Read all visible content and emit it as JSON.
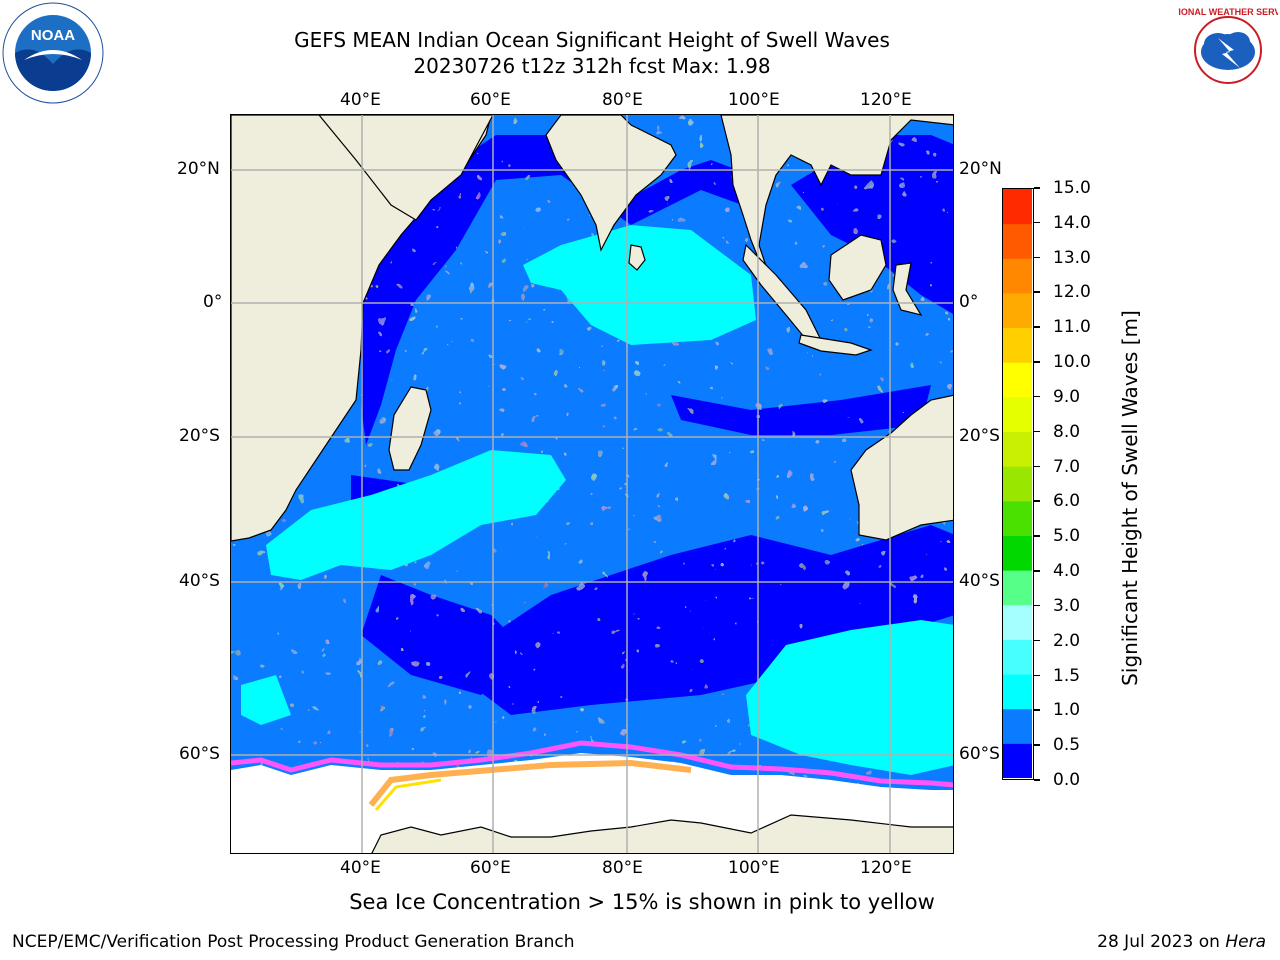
{
  "header": {
    "title_line1": "GEFS MEAN Indian Ocean Significant Height of Swell Waves",
    "title_line2": "20230726 t12z 312h fcst   Max: 1.98"
  },
  "logos": {
    "left": {
      "icon": "noaa-logo",
      "text": "NOAA"
    },
    "right": {
      "icon": "national-weather-service-logo",
      "text": "NATIONAL WEATHER SERVICE"
    }
  },
  "map": {
    "lon_ticks": [
      "40°E",
      "60°E",
      "80°E",
      "100°E",
      "120°E"
    ],
    "lat_ticks": [
      "20°N",
      "0°",
      "20°S",
      "40°S",
      "60°S"
    ],
    "land_color": "#efeddb",
    "ice_color": "#ffffff",
    "ice_edge_colors": [
      "#ff55ff",
      "#ffb050",
      "#ffe000"
    ]
  },
  "colorbar": {
    "title": "Significant Height of Swell Waves [m]",
    "ticks": [
      "0.0",
      "0.5",
      "1.0",
      "1.5",
      "2.0",
      "3.0",
      "4.0",
      "5.0",
      "6.0",
      "7.0",
      "8.0",
      "9.0",
      "10.0",
      "11.0",
      "12.0",
      "13.0",
      "14.0",
      "15.0"
    ],
    "colors": [
      "#0000ff",
      "#0b7bff",
      "#00ffff",
      "#47ffff",
      "#a6ffff",
      "#55ff88",
      "#00d800",
      "#4ae000",
      "#99e600",
      "#c8f000",
      "#e6ff00",
      "#ffff00",
      "#ffd000",
      "#ffaa00",
      "#ff8800",
      "#ff5a00",
      "#ff2a00"
    ]
  },
  "footnote": "Sea Ice Concentration > 15% is shown in pink to yellow",
  "footer": {
    "left": "NCEP/EMC/Verification Post Processing Product Generation Branch",
    "right_prefix": "28 Jul 2023 on ",
    "right_host": "Hera"
  }
}
